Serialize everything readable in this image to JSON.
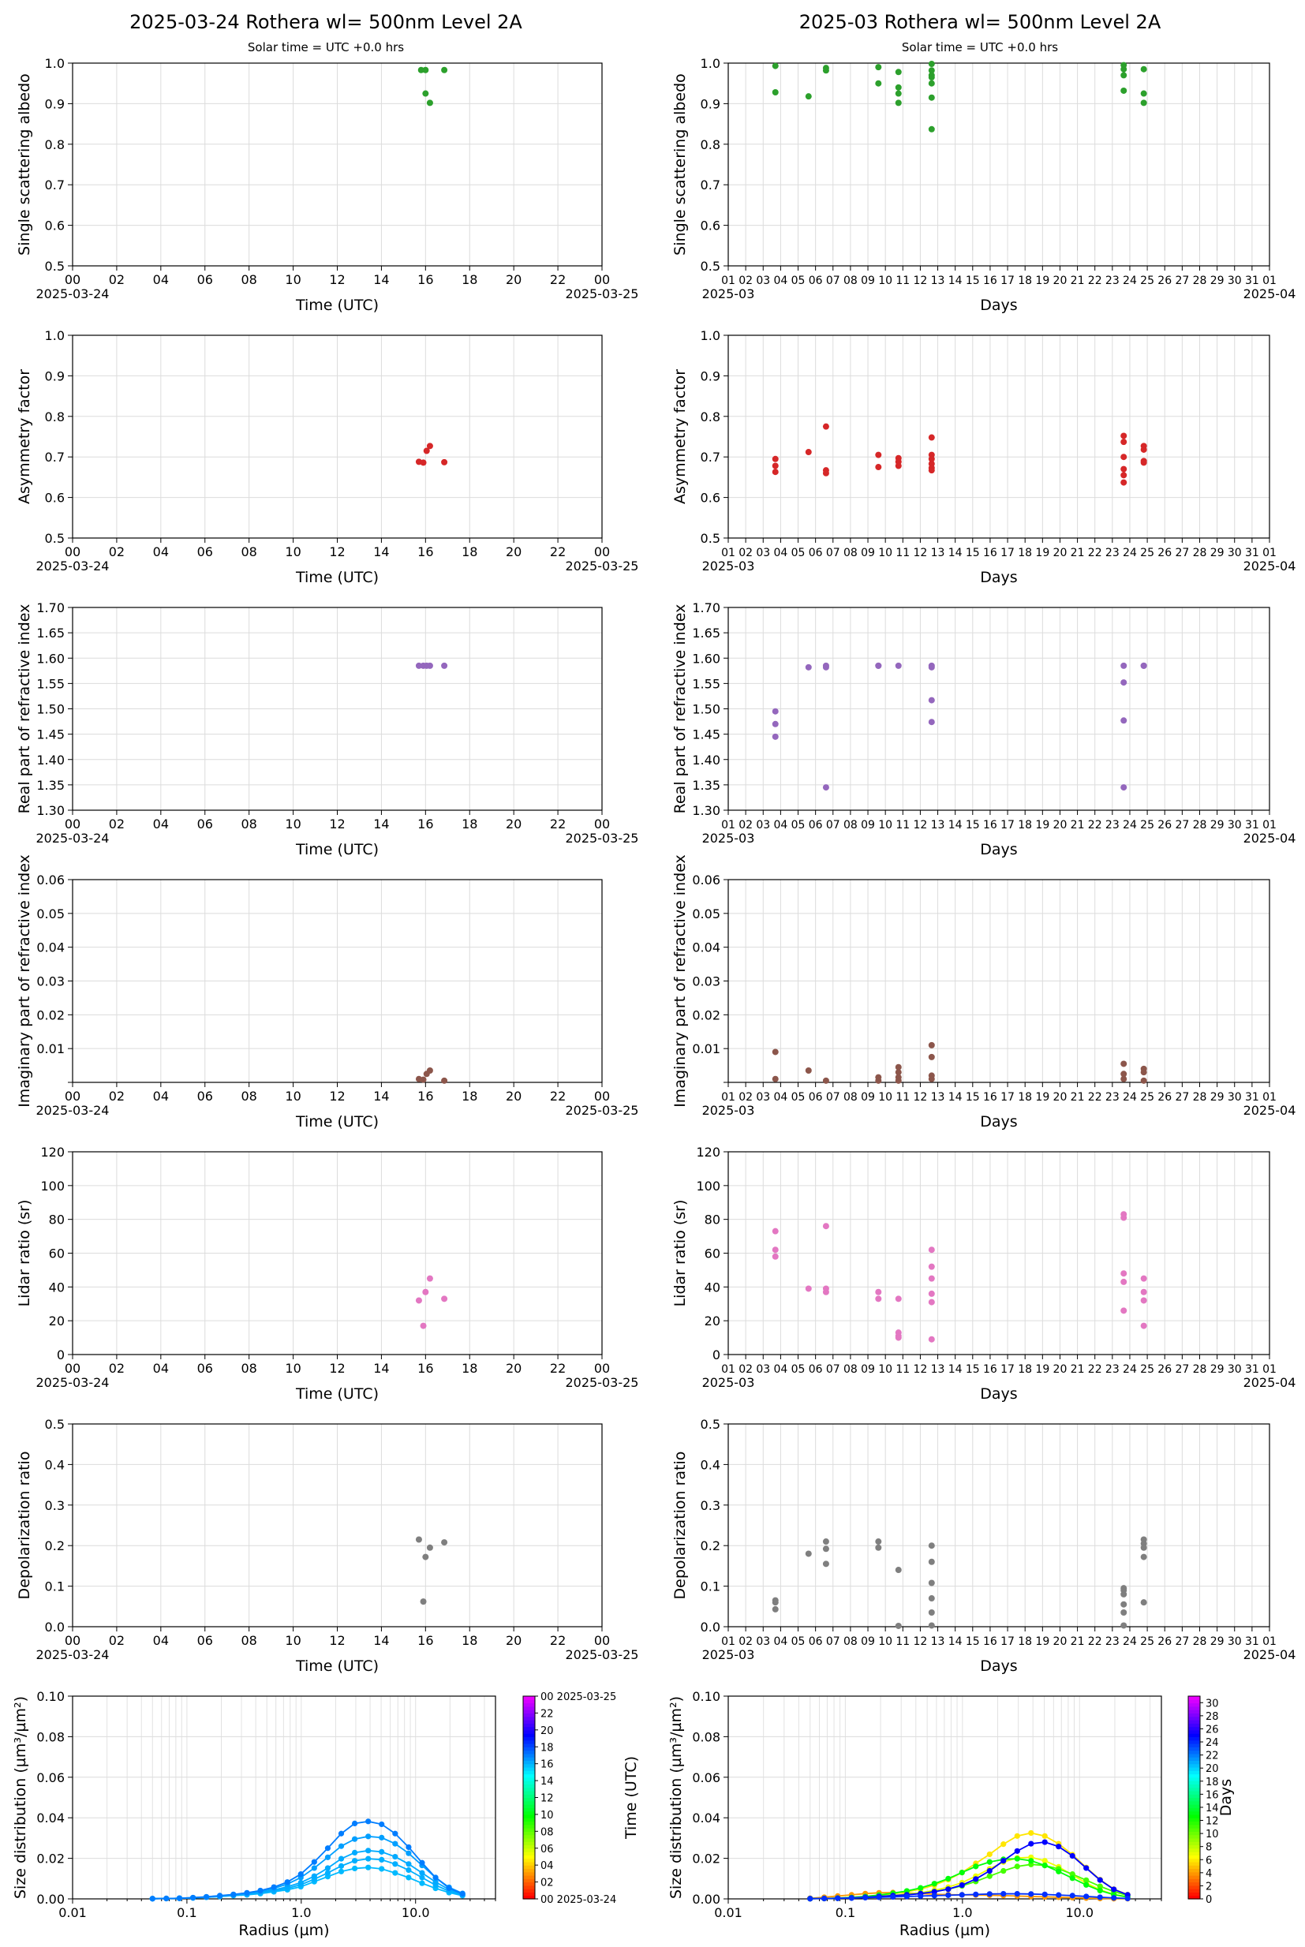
{
  "titles": {
    "left": "2025-03-24  Rothera  wl= 500nm  Level 2A",
    "right": "2025-03  Rothera  wl= 500nm  Level 2A",
    "solar": "Solar time = UTC +0.0 hrs"
  },
  "axes": {
    "day_xlabel": "Time (UTC)",
    "month_xlabel": "Days",
    "day_start": "2025-03-24",
    "day_end": "2025-03-25",
    "month_start": "2025-03",
    "month_end": "2025-04",
    "day_ticks": [
      "00",
      "02",
      "04",
      "06",
      "08",
      "10",
      "12",
      "14",
      "16",
      "18",
      "20",
      "22",
      "00"
    ],
    "month_ticks": [
      "01",
      "02",
      "03",
      "04",
      "05",
      "06",
      "07",
      "08",
      "09",
      "10",
      "11",
      "12",
      "13",
      "14",
      "15",
      "16",
      "17",
      "18",
      "19",
      "20",
      "21",
      "22",
      "23",
      "24",
      "25",
      "26",
      "27",
      "28",
      "29",
      "30",
      "31",
      "01"
    ]
  },
  "colors": {
    "ssa": "#2ca02c",
    "asym": "#d62728",
    "real": "#9467bd",
    "imag": "#8c564b",
    "lidar": "#e377c2",
    "depol": "#7f7f7f"
  },
  "chart_data": [
    {
      "id": "day-ssa",
      "type": "scatter",
      "ylabel": "Single scattering albedo",
      "xlabel": "Time (UTC)",
      "ylim": [
        0.5,
        1.0
      ],
      "yticks": [
        "0.5",
        "0.6",
        "0.7",
        "0.8",
        "0.9",
        "1.0"
      ],
      "x": [
        15.8,
        16.0,
        16.0,
        16.2,
        16.85
      ],
      "y": [
        0.983,
        0.983,
        0.925,
        0.902,
        0.983
      ]
    },
    {
      "id": "month-ssa",
      "type": "scatter",
      "ylabel": "Single scattering albedo",
      "xlabel": "Days",
      "ylim": [
        0.5,
        1.0
      ],
      "yticks": [
        "0.5",
        "0.6",
        "0.7",
        "0.8",
        "0.9",
        "1.0"
      ],
      "x": [
        3.7,
        3.7,
        5.6,
        6.6,
        6.6,
        9.6,
        9.6,
        10.75,
        10.75,
        10.75,
        10.75,
        12.65,
        12.65,
        12.65,
        12.65,
        12.65,
        12.65,
        12.65,
        23.65,
        23.65,
        23.65,
        23.65,
        24.8,
        24.8,
        24.8
      ],
      "y": [
        0.993,
        0.928,
        0.918,
        0.988,
        0.982,
        0.99,
        0.95,
        0.978,
        0.94,
        0.925,
        0.902,
        0.998,
        0.982,
        0.97,
        0.965,
        0.95,
        0.915,
        0.837,
        0.995,
        0.985,
        0.97,
        0.932,
        0.985,
        0.925,
        0.902
      ]
    },
    {
      "id": "day-asym",
      "type": "scatter",
      "ylabel": "Asymmetry factor",
      "xlabel": "Time (UTC)",
      "ylim": [
        0.5,
        1.0
      ],
      "yticks": [
        "0.5",
        "0.6",
        "0.7",
        "0.8",
        "0.9",
        "1.0"
      ],
      "x": [
        15.7,
        15.9,
        16.05,
        16.2,
        16.85
      ],
      "y": [
        0.688,
        0.686,
        0.715,
        0.727,
        0.687
      ]
    },
    {
      "id": "month-asym",
      "type": "scatter",
      "ylabel": "Asymmetry factor",
      "xlabel": "Days",
      "ylim": [
        0.5,
        1.0
      ],
      "yticks": [
        "0.5",
        "0.6",
        "0.7",
        "0.8",
        "0.9",
        "1.0"
      ],
      "x": [
        3.7,
        3.7,
        3.7,
        5.6,
        6.6,
        6.6,
        6.6,
        9.6,
        9.6,
        10.75,
        10.75,
        10.75,
        12.65,
        12.65,
        12.65,
        12.65,
        12.65,
        12.65,
        23.65,
        23.65,
        23.65,
        23.65,
        23.65,
        23.65,
        24.8,
        24.8,
        24.8,
        24.8
      ],
      "y": [
        0.695,
        0.678,
        0.663,
        0.712,
        0.775,
        0.667,
        0.66,
        0.705,
        0.675,
        0.697,
        0.688,
        0.678,
        0.748,
        0.705,
        0.695,
        0.683,
        0.673,
        0.667,
        0.752,
        0.737,
        0.7,
        0.67,
        0.655,
        0.637,
        0.727,
        0.718,
        0.69,
        0.686
      ]
    },
    {
      "id": "day-real",
      "type": "scatter",
      "ylabel": "Real part of refractive index",
      "xlabel": "Time (UTC)",
      "ylim": [
        1.3,
        1.7
      ],
      "yticks": [
        "1.30",
        "1.35",
        "1.40",
        "1.45",
        "1.50",
        "1.55",
        "1.60",
        "1.65",
        "1.70"
      ],
      "x": [
        15.7,
        15.9,
        16.05,
        16.2,
        16.85
      ],
      "y": [
        1.585,
        1.585,
        1.585,
        1.585,
        1.585
      ]
    },
    {
      "id": "month-real",
      "type": "scatter",
      "ylabel": "Real part of refractive index",
      "xlabel": "Days",
      "ylim": [
        1.3,
        1.7
      ],
      "yticks": [
        "1.30",
        "1.35",
        "1.40",
        "1.45",
        "1.50",
        "1.55",
        "1.60",
        "1.65",
        "1.70"
      ],
      "x": [
        3.7,
        3.7,
        3.7,
        5.6,
        6.6,
        6.6,
        6.6,
        9.6,
        9.6,
        10.75,
        12.65,
        12.65,
        12.65,
        12.65,
        23.65,
        23.65,
        23.65,
        23.65,
        24.8,
        24.8
      ],
      "y": [
        1.495,
        1.47,
        1.445,
        1.582,
        1.585,
        1.582,
        1.345,
        1.585,
        1.585,
        1.585,
        1.585,
        1.582,
        1.517,
        1.474,
        1.585,
        1.552,
        1.477,
        1.345,
        1.585,
        1.585
      ]
    },
    {
      "id": "day-imag",
      "type": "scatter",
      "ylabel": "Imaginary part of refractive index",
      "xlabel": "Time (UTC)",
      "ylim": [
        0.0,
        0.06
      ],
      "yticks": [
        "0.01",
        "0.02",
        "0.03",
        "0.04",
        "0.05",
        "0.06"
      ],
      "x": [
        15.7,
        15.9,
        16.05,
        16.2,
        16.85
      ],
      "y": [
        0.001,
        0.0008,
        0.0025,
        0.0035,
        0.0005
      ]
    },
    {
      "id": "month-imag",
      "type": "scatter",
      "ylabel": "Imaginary part of refractive index",
      "xlabel": "Days",
      "ylim": [
        0.0,
        0.06
      ],
      "yticks": [
        "0.01",
        "0.02",
        "0.03",
        "0.04",
        "0.05",
        "0.06"
      ],
      "x": [
        3.7,
        3.7,
        5.6,
        6.6,
        9.6,
        9.6,
        10.75,
        10.75,
        10.75,
        10.75,
        12.65,
        12.65,
        12.65,
        12.65,
        23.65,
        23.65,
        23.65,
        24.8,
        24.8,
        24.8
      ],
      "y": [
        0.009,
        0.001,
        0.0035,
        0.0005,
        0.0015,
        0.0005,
        0.0045,
        0.003,
        0.0015,
        0.0005,
        0.011,
        0.0075,
        0.002,
        0.001,
        0.0055,
        0.0025,
        0.001,
        0.004,
        0.003,
        0.0005
      ]
    },
    {
      "id": "day-lidar",
      "type": "scatter",
      "ylabel": "Lidar ratio (sr)",
      "xlabel": "Time (UTC)",
      "ylim": [
        0,
        120
      ],
      "yticks": [
        "0",
        "20",
        "40",
        "60",
        "80",
        "100",
        "120"
      ],
      "x": [
        15.7,
        15.9,
        16.0,
        16.2,
        16.85
      ],
      "y": [
        32,
        17,
        37,
        45,
        33
      ]
    },
    {
      "id": "month-lidar",
      "type": "scatter",
      "ylabel": "Lidar ratio (sr)",
      "xlabel": "Days",
      "ylim": [
        0,
        120
      ],
      "yticks": [
        "0",
        "20",
        "40",
        "60",
        "80",
        "100",
        "120"
      ],
      "x": [
        3.7,
        3.7,
        3.7,
        5.6,
        6.6,
        6.6,
        6.6,
        9.6,
        9.6,
        10.75,
        10.75,
        10.75,
        10.75,
        12.65,
        12.65,
        12.65,
        12.65,
        12.65,
        12.65,
        23.65,
        23.65,
        23.65,
        23.65,
        23.65,
        24.8,
        24.8,
        24.8,
        24.8
      ],
      "y": [
        73,
        62,
        58,
        39,
        76,
        39,
        37,
        37,
        33,
        33,
        13,
        11,
        10,
        62,
        52,
        45,
        36,
        31,
        9,
        83,
        81,
        48,
        43,
        26,
        45,
        37,
        32,
        17
      ]
    },
    {
      "id": "day-depol",
      "type": "scatter",
      "ylabel": "Depolarization ratio",
      "xlabel": "Time (UTC)",
      "ylim": [
        0.0,
        0.5
      ],
      "yticks": [
        "0.0",
        "0.1",
        "0.2",
        "0.3",
        "0.4",
        "0.5"
      ],
      "x": [
        15.7,
        15.9,
        16.0,
        16.2,
        16.85
      ],
      "y": [
        0.215,
        0.062,
        0.172,
        0.195,
        0.208
      ]
    },
    {
      "id": "month-depol",
      "type": "scatter",
      "ylabel": "Depolarization ratio",
      "xlabel": "Days",
      "ylim": [
        0.0,
        0.5
      ],
      "yticks": [
        "0.0",
        "0.1",
        "0.2",
        "0.3",
        "0.4",
        "0.5"
      ],
      "x": [
        3.7,
        3.7,
        3.7,
        5.6,
        6.6,
        6.6,
        6.6,
        9.6,
        9.6,
        10.75,
        10.75,
        12.65,
        12.65,
        12.65,
        12.65,
        12.65,
        12.65,
        23.65,
        23.65,
        23.65,
        23.65,
        23.65,
        23.65,
        24.8,
        24.8,
        24.8,
        24.8,
        24.8
      ],
      "y": [
        0.065,
        0.06,
        0.043,
        0.18,
        0.21,
        0.192,
        0.155,
        0.21,
        0.195,
        0.14,
        0.002,
        0.2,
        0.16,
        0.108,
        0.07,
        0.035,
        0.003,
        0.095,
        0.09,
        0.08,
        0.055,
        0.035,
        0.003,
        0.215,
        0.205,
        0.195,
        0.172,
        0.06
      ]
    },
    {
      "id": "day-size",
      "type": "line",
      "ylabel": "Size distribution (µm³/µm²)",
      "xlabel": "Radius (µm)",
      "xscale": "log",
      "xlim": [
        0.01,
        50
      ],
      "ylim": [
        0,
        0.1
      ],
      "xticks": [
        "0.01",
        "0.1",
        "1.0",
        "10.0"
      ],
      "yticks": [
        "0.00",
        "0.02",
        "0.04",
        "0.06",
        "0.08",
        "0.10"
      ],
      "x": [
        0.05,
        0.066,
        0.086,
        0.113,
        0.148,
        0.194,
        0.255,
        0.335,
        0.439,
        0.576,
        0.756,
        0.991,
        1.3,
        1.706,
        2.238,
        2.936,
        3.852,
        5.051,
        6.626,
        8.693,
        11.4,
        14.96,
        19.62,
        25.74
      ],
      "series": [
        {
          "time": 15.7,
          "values": [
            0.0001,
            0.0002,
            0.0003,
            0.0005,
            0.0008,
            0.0012,
            0.0016,
            0.002,
            0.0026,
            0.0035,
            0.0045,
            0.006,
            0.0085,
            0.011,
            0.0135,
            0.015,
            0.0155,
            0.0148,
            0.0128,
            0.0105,
            0.0077,
            0.0052,
            0.0031,
            0.0016
          ]
        },
        {
          "time": 15.9,
          "values": [
            0.0001,
            0.0002,
            0.0003,
            0.0005,
            0.0008,
            0.0012,
            0.0017,
            0.0022,
            0.0029,
            0.004,
            0.0052,
            0.007,
            0.0097,
            0.0128,
            0.0162,
            0.0188,
            0.0198,
            0.0193,
            0.0172,
            0.0142,
            0.0105,
            0.0068,
            0.0038,
            0.0018
          ]
        },
        {
          "time": 16.0,
          "values": [
            0.0001,
            0.0002,
            0.0003,
            0.0005,
            0.0009,
            0.0013,
            0.0018,
            0.0024,
            0.0032,
            0.0044,
            0.006,
            0.008,
            0.0112,
            0.0152,
            0.0198,
            0.0228,
            0.0238,
            0.0232,
            0.0208,
            0.0172,
            0.0128,
            0.0083,
            0.0046,
            0.0021
          ]
        },
        {
          "time": 16.2,
          "values": [
            0.0001,
            0.0002,
            0.0003,
            0.0006,
            0.001,
            0.0015,
            0.0021,
            0.0028,
            0.0037,
            0.0052,
            0.0073,
            0.0105,
            0.0152,
            0.0205,
            0.026,
            0.0295,
            0.0308,
            0.0302,
            0.0272,
            0.0225,
            0.0165,
            0.0105,
            0.0057,
            0.0027
          ]
        },
        {
          "time": 16.85,
          "values": [
            0.0001,
            0.0002,
            0.0003,
            0.0006,
            0.001,
            0.0016,
            0.0022,
            0.003,
            0.0041,
            0.0058,
            0.0083,
            0.0122,
            0.0182,
            0.025,
            0.0322,
            0.0372,
            0.0382,
            0.0368,
            0.0322,
            0.0255,
            0.0178,
            0.0105,
            0.0053,
            0.0025
          ]
        }
      ],
      "colorbar": {
        "label": "Time (UTC)",
        "ticks": [
          "00 2025-03-24",
          "02",
          "04",
          "06",
          "08",
          "10",
          "12",
          "14",
          "16",
          "18",
          "20",
          "22",
          "00 2025-03-25"
        ]
      }
    },
    {
      "id": "month-size",
      "type": "line",
      "ylabel": "Size distribution (µm³/µm²)",
      "xlabel": "Radius (µm)",
      "xscale": "log",
      "xlim": [
        0.01,
        50
      ],
      "ylim": [
        0,
        0.1
      ],
      "xticks": [
        "0.01",
        "0.1",
        "1.0",
        "10.0"
      ],
      "yticks": [
        "0.00",
        "0.02",
        "0.04",
        "0.06",
        "0.08",
        "0.10"
      ],
      "x": [
        0.05,
        0.066,
        0.086,
        0.113,
        0.148,
        0.194,
        0.255,
        0.335,
        0.439,
        0.576,
        0.756,
        0.991,
        1.3,
        1.706,
        2.238,
        2.936,
        3.852,
        5.051,
        6.626,
        8.693,
        11.4,
        14.96,
        19.62,
        25.74
      ],
      "series": [
        {
          "day": 3.7,
          "values": [
            0.0003,
            0.0008,
            0.0014,
            0.002,
            0.0026,
            0.003,
            0.0031,
            0.0029,
            0.0026,
            0.0023,
            0.0021,
            0.002,
            0.0019,
            0.0018,
            0.0016,
            0.0014,
            0.0012,
            0.001,
            0.0008,
            0.0006,
            0.0004,
            0.0002,
            0.0001,
            0.0001
          ]
        },
        {
          "day": 6.6,
          "values": [
            0.0001,
            0.0002,
            0.0003,
            0.0005,
            0.0008,
            0.0012,
            0.0017,
            0.0023,
            0.003,
            0.0042,
            0.0058,
            0.008,
            0.0112,
            0.0148,
            0.0182,
            0.0202,
            0.0205,
            0.0188,
            0.0158,
            0.0118,
            0.0078,
            0.0045,
            0.0022,
            0.001
          ]
        },
        {
          "day": 5.6,
          "values": [
            0.0001,
            0.0002,
            0.0004,
            0.0007,
            0.0012,
            0.0018,
            0.0025,
            0.0035,
            0.0048,
            0.0068,
            0.0095,
            0.013,
            0.0175,
            0.022,
            0.027,
            0.031,
            0.0325,
            0.031,
            0.0272,
            0.0218,
            0.0155,
            0.0095,
            0.0048,
            0.0021
          ]
        },
        {
          "day": 10.75,
          "values": [
            0.0001,
            0.0002,
            0.0003,
            0.0005,
            0.0008,
            0.0012,
            0.0016,
            0.0021,
            0.0027,
            0.0036,
            0.0048,
            0.0064,
            0.0086,
            0.0112,
            0.0138,
            0.016,
            0.017,
            0.0165,
            0.0148,
            0.0122,
            0.0092,
            0.0062,
            0.0036,
            0.0017
          ]
        },
        {
          "day": 12.65,
          "values": [
            0.0001,
            0.0002,
            0.0004,
            0.0007,
            0.0012,
            0.0019,
            0.0028,
            0.0039,
            0.0054,
            0.0075,
            0.01,
            0.013,
            0.016,
            0.0182,
            0.0195,
            0.0198,
            0.0188,
            0.0165,
            0.0135,
            0.0102,
            0.0069,
            0.0041,
            0.0021,
            0.0009
          ]
        },
        {
          "day": 24.8,
          "values": [
            0.0001,
            0.0002,
            0.0003,
            0.0005,
            0.0008,
            0.0012,
            0.0016,
            0.002,
            0.0026,
            0.0035,
            0.0048,
            0.0068,
            0.0098,
            0.0138,
            0.0188,
            0.0236,
            0.0272,
            0.028,
            0.0258,
            0.0212,
            0.0152,
            0.0093,
            0.0047,
            0.002
          ]
        },
        {
          "day": 23.65,
          "values": [
            0.0001,
            0.0002,
            0.0003,
            0.0004,
            0.0006,
            0.0008,
            0.001,
            0.0012,
            0.0014,
            0.0016,
            0.0018,
            0.002,
            0.0022,
            0.0024,
            0.0025,
            0.0025,
            0.0024,
            0.0022,
            0.0019,
            0.0016,
            0.0012,
            0.0008,
            0.0005,
            0.0002
          ]
        }
      ],
      "colorbar": {
        "label": "Days",
        "ticks": [
          "0",
          "2",
          "4",
          "6",
          "8",
          "10",
          "12",
          "14",
          "16",
          "18",
          "20",
          "22",
          "24",
          "26",
          "28",
          "30"
        ]
      }
    }
  ]
}
